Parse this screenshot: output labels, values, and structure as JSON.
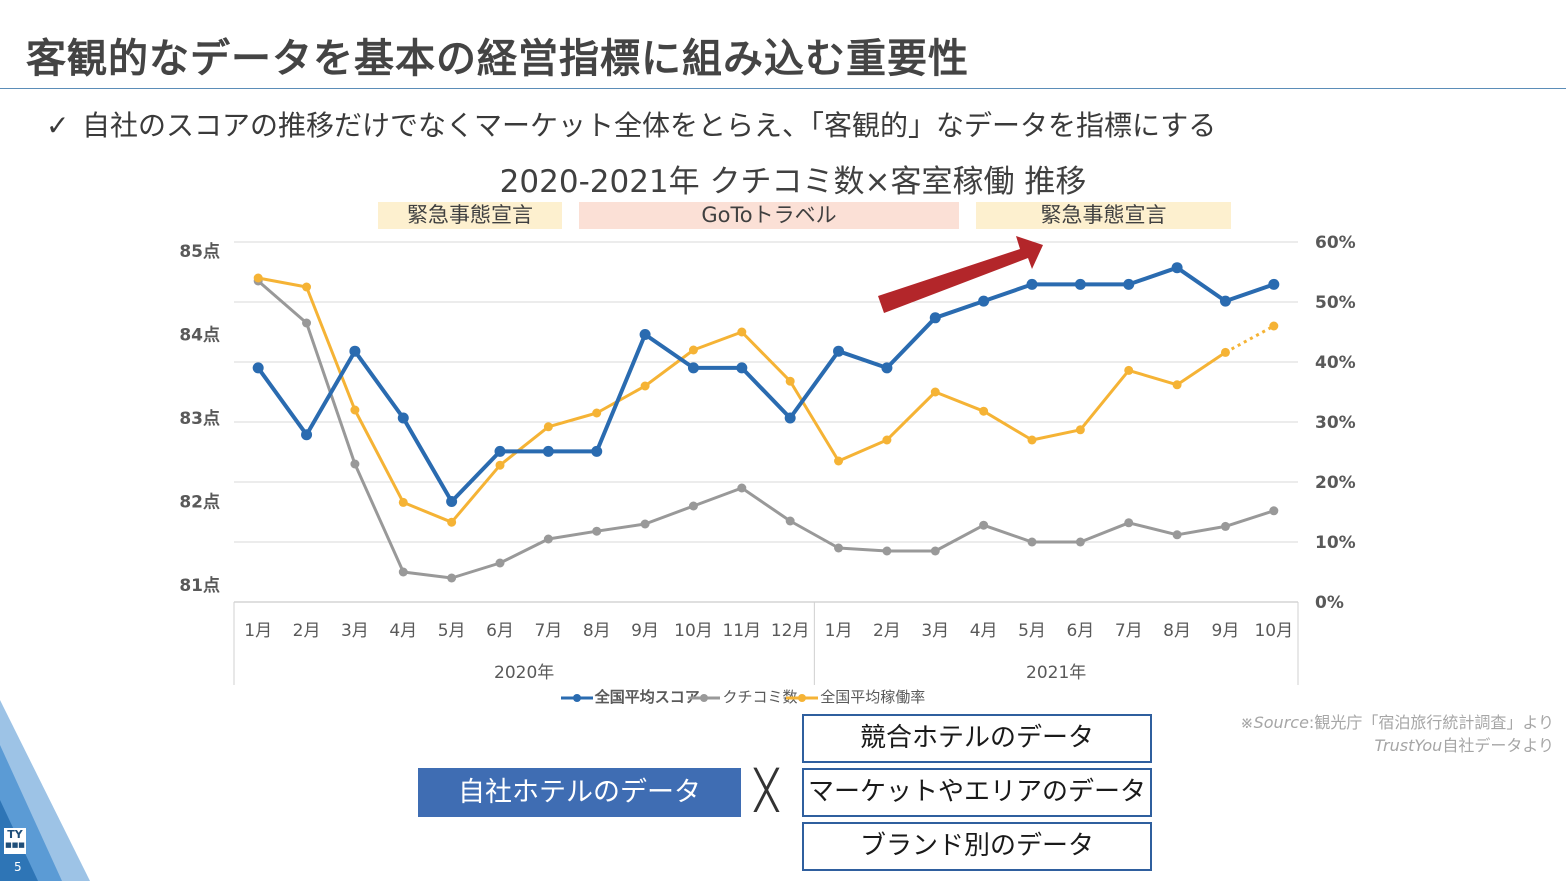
{
  "slide": {
    "title": "客観的なデータを基本の経営指標に組み込む重要性",
    "bullet_mark": "✓",
    "bullet_text": "自社のスコアの推移だけでなくマーケット全体をとらえ、「客観的」なデータを指標にする",
    "page_number": "5",
    "logo_text": "TY"
  },
  "bands": {
    "emergency_1": "緊急事態宣言",
    "goto": "GoToトラベル",
    "emergency_2": "緊急事態宣言"
  },
  "colors": {
    "score": "#2a6bb0",
    "reviews": "#999999",
    "occupancy": "#f5b335",
    "arrow": "#b3262a",
    "band_yellow": "#fdf0cf",
    "band_pink": "#fbe0d6",
    "own_box": "#3f6db3"
  },
  "chart_data": {
    "type": "line",
    "title": "2020-2021年 クチコミ数×客室稼働 推移",
    "categories": [
      "1月",
      "2月",
      "3月",
      "4月",
      "5月",
      "6月",
      "7月",
      "8月",
      "9月",
      "10月",
      "11月",
      "12月",
      "1月",
      "2月",
      "3月",
      "4月",
      "5月",
      "6月",
      "7月",
      "8月",
      "9月",
      "10月"
    ],
    "year_groups": [
      {
        "label": "2020年",
        "count": 12
      },
      {
        "label": "2021年",
        "count": 10
      }
    ],
    "y_left": {
      "min": 81,
      "max": 85,
      "ticks": [
        "81点",
        "82点",
        "83点",
        "84点",
        "85点"
      ],
      "values": [
        81,
        82,
        83,
        84,
        85
      ]
    },
    "y_right": {
      "min": 0,
      "max": 60,
      "ticks": [
        "0%",
        "10%",
        "20%",
        "30%",
        "40%",
        "50%",
        "60%"
      ],
      "values": [
        0,
        10,
        20,
        30,
        40,
        50,
        60
      ]
    },
    "grid": true,
    "legend_position": "bottom",
    "series": [
      {
        "name": "全国平均スコア",
        "axis": "left",
        "values": [
          83.6,
          82.8,
          83.8,
          83.0,
          82.0,
          82.6,
          82.6,
          82.6,
          84.0,
          83.6,
          83.6,
          83.0,
          83.8,
          83.6,
          84.2,
          84.4,
          84.6,
          84.6,
          84.6,
          84.8,
          84.4,
          84.6
        ]
      },
      {
        "name": "クチコミ数",
        "axis": "right",
        "values": [
          53.5,
          46.5,
          23,
          5,
          4,
          6.5,
          10.5,
          11.8,
          13,
          16,
          19,
          13.5,
          9,
          8.5,
          8.5,
          12.8,
          10,
          10,
          13.2,
          11.2,
          12.6,
          15.2
        ]
      },
      {
        "name": "全国平均稼働率",
        "axis": "right",
        "values": [
          54,
          52.5,
          32,
          16.6,
          13.3,
          22.8,
          29.2,
          31.5,
          36,
          42,
          45,
          36.8,
          23.5,
          27,
          35,
          31.8,
          27,
          28.7,
          38.6,
          36.2,
          41.6,
          46
        ]
      }
    ],
    "projection_note": "last point of 全国平均稼働率 shown dotted"
  },
  "legend": {
    "score": "全国平均スコア",
    "reviews": "クチコミ数",
    "occupancy": "全国平均稼働率"
  },
  "source": {
    "prefix": "※Source",
    "line1_rest": ":観光庁「宿泊旅行統計調査」より",
    "line2_italic": "TrustYou",
    "line2_rest": "自社データより"
  },
  "bottom": {
    "own_data": "自社ホテルのデータ",
    "times": "╳",
    "competitor_data": "競合ホテルのデータ",
    "market_data": "マーケットやエリアのデータ",
    "brand_data": "ブランド別のデータ"
  }
}
